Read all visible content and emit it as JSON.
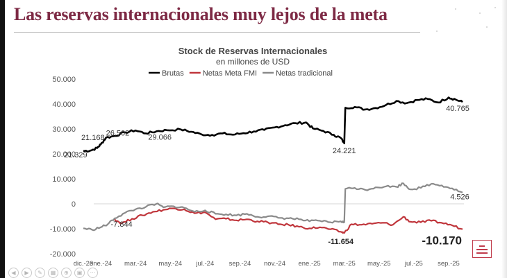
{
  "slide": {
    "headline": "Las reservas internacionales muy lejos de la meta"
  },
  "chart_data": {
    "type": "line",
    "title": "Stock de Reservas Internacionales",
    "subtitle": "en millones de USD",
    "ylim": [
      -20000,
      50000
    ],
    "yticks": [
      50000,
      40000,
      30000,
      20000,
      10000,
      0,
      -10000,
      -20000
    ],
    "ytick_labels": [
      "50.000",
      "40.000",
      "30.000",
      "20.000",
      "10.000",
      "0",
      "-10.000",
      "-20.000"
    ],
    "x_months": 22,
    "xtick_labels": [
      "dic.-23",
      "ene.-24",
      "mar.-24",
      "may.-24",
      "jul.-24",
      "sep.-24",
      "nov.-24",
      "ene.-25",
      "mar.-25",
      "may.-25",
      "jul.-25",
      "sep.-25"
    ],
    "xtick_positions": [
      0,
      1,
      3,
      5,
      7,
      9,
      11,
      13,
      15,
      17,
      19,
      21
    ],
    "series": [
      {
        "name": "Brutas",
        "color": "#000000",
        "points": [
          [
            0,
            21168
          ],
          [
            0.4,
            21300
          ],
          [
            0.8,
            22400
          ],
          [
            1,
            23800
          ],
          [
            1.3,
            26502
          ],
          [
            1.8,
            27200
          ],
          [
            2.4,
            28600
          ],
          [
            3.0,
            29400
          ],
          [
            3.6,
            28200
          ],
          [
            4.2,
            29066
          ],
          [
            4.8,
            29500
          ],
          [
            5.6,
            29800
          ],
          [
            6.2,
            28900
          ],
          [
            6.8,
            27800
          ],
          [
            7.4,
            27600
          ],
          [
            8.0,
            28200
          ],
          [
            8.6,
            27700
          ],
          [
            9.2,
            28300
          ],
          [
            9.8,
            29000
          ],
          [
            10.4,
            29600
          ],
          [
            11.0,
            30600
          ],
          [
            11.6,
            31500
          ],
          [
            12.2,
            32300
          ],
          [
            12.8,
            32600
          ],
          [
            13.2,
            30200
          ],
          [
            13.8,
            29200
          ],
          [
            14.4,
            27600
          ],
          [
            14.8,
            26400
          ],
          [
            15.0,
            24221
          ],
          [
            15.06,
            38500
          ],
          [
            15.6,
            38800
          ],
          [
            16.2,
            37800
          ],
          [
            16.8,
            38400
          ],
          [
            17.4,
            39600
          ],
          [
            18.0,
            41200
          ],
          [
            18.6,
            40400
          ],
          [
            19.2,
            41600
          ],
          [
            19.8,
            42000
          ],
          [
            20.4,
            40600
          ],
          [
            21.0,
            42600
          ],
          [
            21.4,
            41800
          ],
          [
            21.8,
            40765
          ]
        ],
        "labels": [
          {
            "text": "21.168",
            "x": 0,
            "y": 21168,
            "anchor": "start",
            "dx": -3,
            "dy": -16,
            "bold": false
          },
          {
            "text": "21.329",
            "x": 0,
            "y": 21329,
            "anchor": "start",
            "dx": -28,
            "dy": 10,
            "bold": false
          },
          {
            "text": "26.502",
            "x": 1.3,
            "y": 26502,
            "anchor": "start",
            "dx": 0,
            "dy": -3,
            "bold": false
          },
          {
            "text": "29.066",
            "x": 4.2,
            "y": 29066,
            "anchor": "middle",
            "dx": 5,
            "dy": 12,
            "bold": false
          },
          {
            "text": "24.221",
            "x": 15.0,
            "y": 24221,
            "anchor": "middle",
            "dx": 0,
            "dy": 14,
            "bold": false
          },
          {
            "text": "40.765",
            "x": 21.8,
            "y": 40765,
            "anchor": "middle",
            "dx": -7,
            "dy": 13,
            "bold": false
          }
        ]
      },
      {
        "name": "Netas Meta FMI",
        "color": "#c0363c",
        "points": [
          [
            1.8,
            -6200
          ],
          [
            2.2,
            -7844
          ],
          [
            2.8,
            -6000
          ],
          [
            3.4,
            -4600
          ],
          [
            4.0,
            -3200
          ],
          [
            4.6,
            -2400
          ],
          [
            5.2,
            -1800
          ],
          [
            5.8,
            -2200
          ],
          [
            6.4,
            -3800
          ],
          [
            7.0,
            -3400
          ],
          [
            7.6,
            -6200
          ],
          [
            8.2,
            -6000
          ],
          [
            8.8,
            -6600
          ],
          [
            9.4,
            -6200
          ],
          [
            10.0,
            -7000
          ],
          [
            10.6,
            -7400
          ],
          [
            11.2,
            -8200
          ],
          [
            11.8,
            -8400
          ],
          [
            12.4,
            -9200
          ],
          [
            13.0,
            -9800
          ],
          [
            13.6,
            -9400
          ],
          [
            14.2,
            -10200
          ],
          [
            14.8,
            -11200
          ],
          [
            15.0,
            -11654
          ],
          [
            15.4,
            -8200
          ],
          [
            16.0,
            -8400
          ],
          [
            16.6,
            -8000
          ],
          [
            17.2,
            -7600
          ],
          [
            17.8,
            -8400
          ],
          [
            18.4,
            -5200
          ],
          [
            18.8,
            -7200
          ],
          [
            19.4,
            -7400
          ],
          [
            20.0,
            -6800
          ],
          [
            20.6,
            -7600
          ],
          [
            21.2,
            -8600
          ],
          [
            21.8,
            -10170
          ]
        ],
        "labels": [
          {
            "text": "-7.844",
            "x": 2.2,
            "y": -7844,
            "anchor": "middle",
            "dx": 0,
            "dy": 5,
            "bold": false
          },
          {
            "text": "-11.654",
            "x": 15.0,
            "y": -11654,
            "anchor": "middle",
            "dx": -5,
            "dy": 16,
            "bold": true
          },
          {
            "text": "-10.170",
            "x": 21.8,
            "y": -10170,
            "anchor": "end",
            "dx": -1,
            "dy": 22,
            "bold": true
          }
        ]
      },
      {
        "name": "Netas tradicional",
        "color": "#8a8a8a",
        "points": [
          [
            0,
            -9800
          ],
          [
            0.5,
            -10400
          ],
          [
            1.0,
            -9400
          ],
          [
            1.4,
            -8200
          ],
          [
            1.8,
            -5800
          ],
          [
            2.4,
            -3600
          ],
          [
            3.0,
            -2200
          ],
          [
            3.6,
            -1200
          ],
          [
            4.2,
            0
          ],
          [
            4.6,
            -1400
          ],
          [
            5.2,
            -1000
          ],
          [
            5.8,
            -1600
          ],
          [
            6.4,
            -3200
          ],
          [
            7.0,
            -2600
          ],
          [
            7.6,
            -4000
          ],
          [
            8.2,
            -4200
          ],
          [
            8.8,
            -4600
          ],
          [
            9.4,
            -4000
          ],
          [
            10.0,
            -5200
          ],
          [
            10.6,
            -5000
          ],
          [
            11.2,
            -5600
          ],
          [
            11.8,
            -5800
          ],
          [
            12.4,
            -6200
          ],
          [
            13.0,
            -7000
          ],
          [
            13.6,
            -6800
          ],
          [
            14.2,
            -7400
          ],
          [
            14.8,
            -7000
          ],
          [
            15.0,
            -7400
          ],
          [
            15.06,
            6000
          ],
          [
            15.6,
            6400
          ],
          [
            16.2,
            5600
          ],
          [
            16.8,
            6600
          ],
          [
            17.4,
            7000
          ],
          [
            18.0,
            6800
          ],
          [
            18.4,
            8200
          ],
          [
            18.8,
            5800
          ],
          [
            19.4,
            6400
          ],
          [
            20.0,
            8000
          ],
          [
            20.6,
            7400
          ],
          [
            21.2,
            6200
          ],
          [
            21.8,
            4526
          ]
        ],
        "labels": [
          {
            "text": "4.526",
            "x": 21.8,
            "y": 4526,
            "anchor": "middle",
            "dx": -4,
            "dy": 10,
            "bold": false
          }
        ]
      }
    ]
  }
}
